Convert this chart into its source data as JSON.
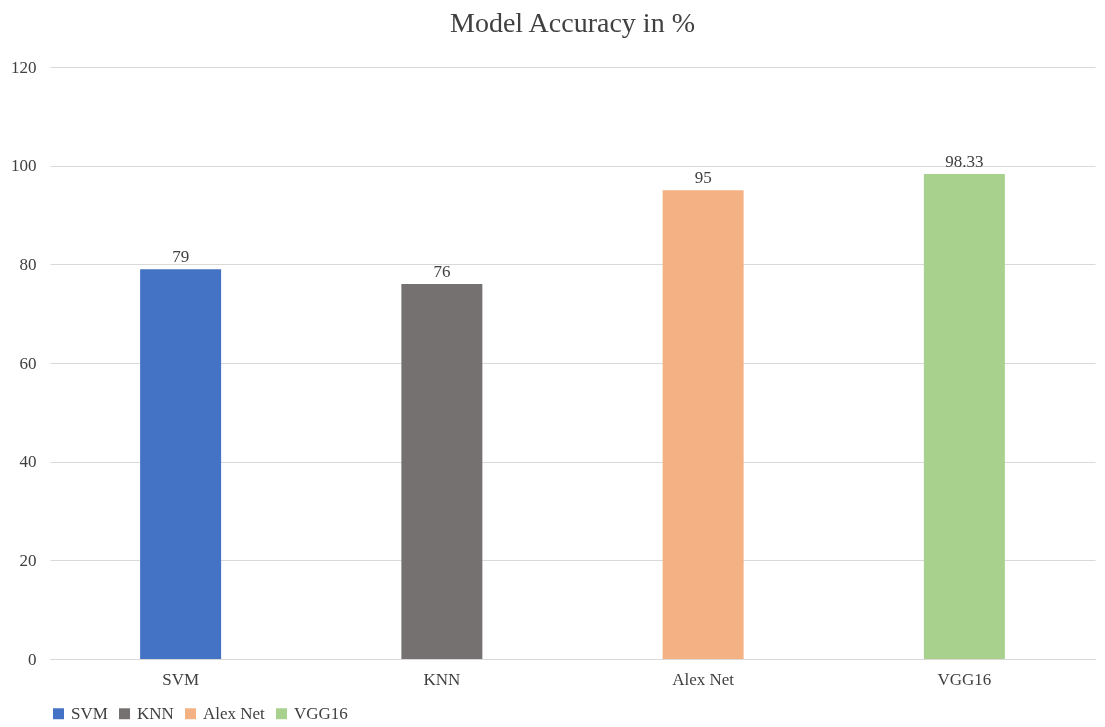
{
  "chart_data": {
    "type": "bar",
    "title": "Model Accuracy in %",
    "categories": [
      "SVM",
      "KNN",
      "Alex Net",
      "VGG16"
    ],
    "series": [
      {
        "name": "SVM",
        "color": "#4472c4",
        "values": [
          79,
          null,
          null,
          null
        ]
      },
      {
        "name": "KNN",
        "color": "#767171",
        "values": [
          null,
          76,
          null,
          null
        ]
      },
      {
        "name": "Alex Net",
        "color": "#f4b183",
        "values": [
          null,
          null,
          95,
          null
        ]
      },
      {
        "name": "VGG16",
        "color": "#a9d18e",
        "values": [
          null,
          null,
          null,
          98.33
        ]
      }
    ],
    "ylim": [
      0,
      120
    ],
    "yticks": [
      0,
      20,
      40,
      60,
      80,
      100,
      120
    ],
    "grid": "y",
    "data_labels": true,
    "legend": "bottom"
  }
}
